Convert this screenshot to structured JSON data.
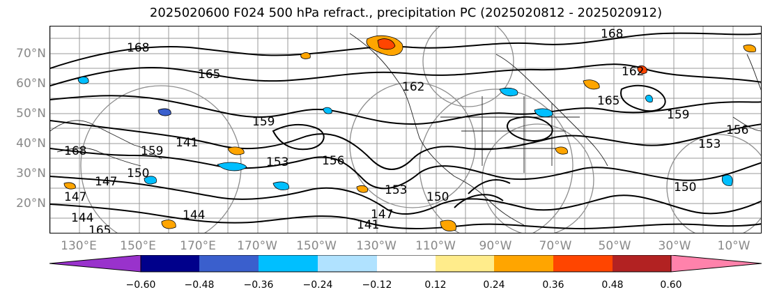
{
  "title": "2025020600 F024 500 hPa refract., precipitation PC (2025020812 - 2025020912)",
  "lat_labels": [
    "70°N",
    "60°N",
    "50°N",
    "40°N",
    "30°N",
    "20°N"
  ],
  "lon_labels": [
    "130°E",
    "150°E",
    "170°E",
    "170°W",
    "150°W",
    "130°W",
    "110°W",
    "90°W",
    "70°W",
    "50°W",
    "30°W",
    "10°W"
  ],
  "contour_labels": [
    "168",
    "165",
    "162",
    "159",
    "156",
    "153",
    "150",
    "147",
    "144",
    "141",
    "168",
    "165",
    "162",
    "159",
    "156",
    "153",
    "150",
    "147",
    "144",
    "141",
    "168",
    "165",
    "159",
    "153",
    "150",
    "147"
  ],
  "colorbar": {
    "colors": [
      "#9932cc",
      "#00008b",
      "#3a5fcd",
      "#00bfff",
      "#b0e2ff",
      "#ffffff",
      "#ffec8b",
      "#ffa500",
      "#ff4500",
      "#b22222",
      "#ff82ab"
    ],
    "tick_labels": [
      "−0.60",
      "−0.48",
      "−0.36",
      "−0.24",
      "−0.12",
      "0.12",
      "0.24",
      "0.36",
      "0.48",
      "0.60"
    ]
  }
}
